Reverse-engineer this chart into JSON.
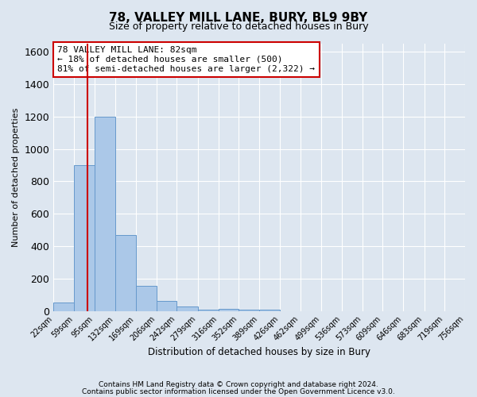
{
  "title": "78, VALLEY MILL LANE, BURY, BL9 9BY",
  "subtitle": "Size of property relative to detached houses in Bury",
  "xlabel": "Distribution of detached houses by size in Bury",
  "ylabel": "Number of detached properties",
  "bin_edges": [
    22,
    59,
    95,
    132,
    169,
    206,
    242,
    279,
    316,
    352,
    389,
    426,
    462,
    499,
    536,
    573,
    609,
    646,
    683,
    719,
    756
  ],
  "bar_heights": [
    50,
    900,
    1200,
    470,
    155,
    60,
    30,
    10,
    12,
    10,
    10,
    0,
    0,
    0,
    0,
    0,
    0,
    0,
    0,
    0
  ],
  "bar_color": "#abc8e8",
  "bar_edge_color": "#6699cc",
  "vline_x": 82,
  "vline_color": "#cc0000",
  "annotation_text": "78 VALLEY MILL LANE: 82sqm\n← 18% of detached houses are smaller (500)\n81% of semi-detached houses are larger (2,322) →",
  "annotation_box_color": "#ffffff",
  "annotation_box_edge": "#cc0000",
  "ylim": [
    0,
    1650
  ],
  "yticks": [
    0,
    200,
    400,
    600,
    800,
    1000,
    1200,
    1400,
    1600
  ],
  "background_color": "#dde6f0",
  "plot_bg_color": "#dde6f0",
  "footer_line1": "Contains HM Land Registry data © Crown copyright and database right 2024.",
  "footer_line2": "Contains public sector information licensed under the Open Government Licence v3.0.",
  "title_fontsize": 11,
  "subtitle_fontsize": 9,
  "tick_label_fontsize": 7,
  "ylabel_fontsize": 8,
  "xlabel_fontsize": 8.5
}
